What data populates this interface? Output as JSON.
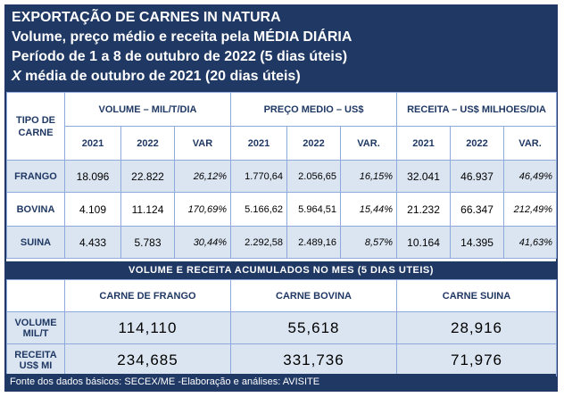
{
  "header": {
    "line1": "EXPORTAÇÃO DE CARNES IN NATURA",
    "line2": "Volume, preço médio e receita pela MÉDIA DIÁRIA",
    "line3": "Período de 1 a 8 de outubro de 2022 (5 dias úteis)",
    "line4_x": "X",
    "line4": " média de outubro de 2021 (20 dias úteis)"
  },
  "table": {
    "row_header": "TIPO DE CARNE",
    "group_headers": [
      "VOLUME – MIL/T/DIA",
      "PREÇO MEDIO – US$",
      "RECEITA – US$ MILHOES/DIA"
    ],
    "sub_headers": [
      "2021",
      "2022",
      "VAR",
      "2021",
      "2022",
      "VAR.",
      "2021",
      "2022",
      "VAR."
    ],
    "rows": [
      {
        "name": "FRANGO",
        "values": [
          "18.096",
          "22.822",
          "26,12%",
          "1.770,64",
          "2.056,65",
          "16,15%",
          "32.041",
          "46.937",
          "46,49%"
        ]
      },
      {
        "name": "BOVINA",
        "values": [
          "4.109",
          "11.124",
          "170,69%",
          "5.166,62",
          "5.964,51",
          "15,44%",
          "21.232",
          "66.347",
          "212,49%"
        ]
      },
      {
        "name": "SUINA",
        "values": [
          "4.433",
          "5.783",
          "30,44%",
          "2.292,58",
          "2.489,16",
          "8,57%",
          "10.164",
          "14.395",
          "41,63%"
        ]
      }
    ]
  },
  "band": "VOLUME E RECEITA ACUMULADOS NO MES (5 DIAS UTEIS)",
  "accum": {
    "columns": [
      "CARNE DE FRANGO",
      "CARNE BOVINA",
      "CARNE SUINA"
    ],
    "rows": [
      {
        "label1": "VOLUME",
        "label2": "MIL/T",
        "values": [
          "114,110",
          "55,618",
          "28,916"
        ]
      },
      {
        "label1": "RECEITA",
        "label2": "US$ MI",
        "values": [
          "234,685",
          "331,736",
          "71,976"
        ]
      }
    ]
  },
  "footer": "Fonte dos dados básicos: SECEX/ME -Elaboração e análises: AVISITE"
}
